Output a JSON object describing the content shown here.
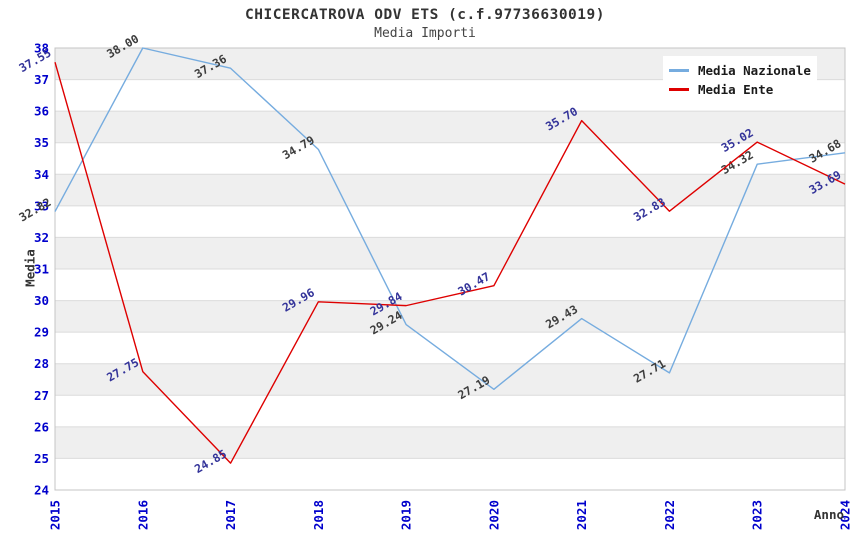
{
  "title": "CHICERCATROVA ODV ETS (c.f.97736630019)",
  "subtitle": "Media Importi",
  "legend": {
    "position": "top-right",
    "items": [
      {
        "label": "Media Nazionale",
        "color": "#76ACDF"
      },
      {
        "label": "Media Ente",
        "color": "#DE0000"
      }
    ]
  },
  "colors": {
    "background": "#FFFFFF",
    "band": "#EFEFEF",
    "grid": "#DBDBDB",
    "plot_border": "#C4C4C4",
    "tick_label": "#0000CC",
    "title_text": "#333333"
  },
  "chart_data": {
    "type": "line",
    "title": "CHICERCATROVA ODV ETS (c.f.97736630019)",
    "subtitle": "Media Importi",
    "xlabel": "Anno",
    "ylabel": "Media",
    "x": [
      2015,
      2016,
      2017,
      2018,
      2019,
      2020,
      2021,
      2022,
      2023,
      2024
    ],
    "ylim": [
      24,
      38
    ],
    "ytick_step": 1,
    "grid": true,
    "banding": true,
    "legend_position": "top-right",
    "series": [
      {
        "name": "Media Nazionale",
        "color": "#76ACDF",
        "label_color": "#3D3D3D",
        "values": [
          32.82,
          38.0,
          37.36,
          34.79,
          29.24,
          27.19,
          29.43,
          27.71,
          34.32,
          34.68
        ]
      },
      {
        "name": "Media Ente",
        "color": "#DE0000",
        "label_color": "#333399",
        "values": [
          37.55,
          27.75,
          24.85,
          29.96,
          29.84,
          30.47,
          35.7,
          32.83,
          35.02,
          33.69
        ]
      }
    ]
  }
}
